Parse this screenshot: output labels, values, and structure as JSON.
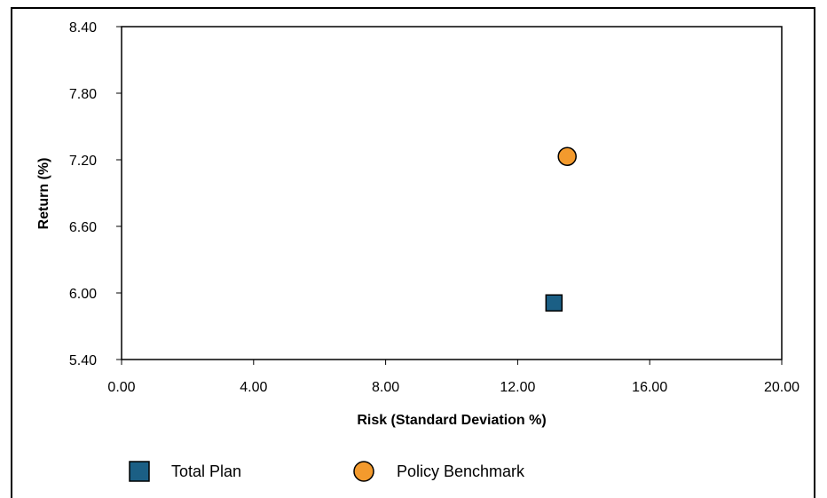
{
  "chart_data": {
    "type": "scatter",
    "xlabel": "Risk (Standard Deviation %)",
    "ylabel": "Return (%)",
    "xlim": [
      0,
      20
    ],
    "ylim": [
      5.4,
      8.4
    ],
    "xticks": [
      "0.00",
      "4.00",
      "8.00",
      "12.00",
      "16.00",
      "20.00"
    ],
    "yticks": [
      "5.40",
      "6.00",
      "6.60",
      "7.20",
      "7.80",
      "8.40"
    ],
    "grid": false,
    "legend_position": "bottom",
    "series": [
      {
        "name": "Total Plan",
        "marker": "square",
        "color": "#1b5f85",
        "points": [
          {
            "x": 13.1,
            "y": 5.91
          }
        ]
      },
      {
        "name": "Policy Benchmark",
        "marker": "circle",
        "color": "#f39a2d",
        "points": [
          {
            "x": 13.5,
            "y": 7.23
          }
        ]
      }
    ]
  }
}
